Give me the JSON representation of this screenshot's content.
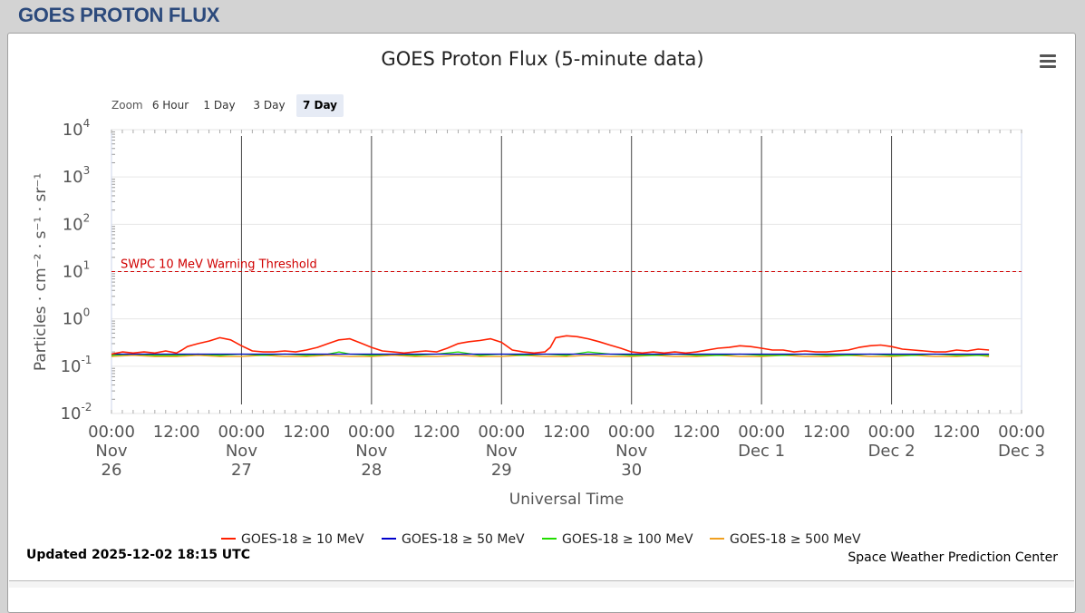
{
  "header": {
    "title": "GOES PROTON FLUX"
  },
  "chart_title": "GOES Proton Flux (5-minute data)",
  "zoom": {
    "label": "Zoom",
    "buttons": [
      "6 Hour",
      "1 Day",
      "3 Day",
      "7 Day"
    ],
    "selected": "7 Day"
  },
  "footer": {
    "updated": "Updated 2025-12-02 18:15 UTC",
    "credit": "Space Weather Prediction Center"
  },
  "chart_data": {
    "type": "line",
    "title": "GOES Proton Flux (5-minute data)",
    "xlabel": "Universal Time",
    "ylabel": "Particles · cm⁻² · s⁻¹ · sr⁻¹",
    "yscale": "log",
    "ylim": [
      0.01,
      10000
    ],
    "y_ticks": [
      {
        "base": "10",
        "exp": "4"
      },
      {
        "base": "10",
        "exp": "3"
      },
      {
        "base": "10",
        "exp": "2"
      },
      {
        "base": "10",
        "exp": "1"
      },
      {
        "base": "10",
        "exp": "0"
      },
      {
        "base": "10",
        "exp": "-1"
      },
      {
        "base": "10",
        "exp": "-2"
      }
    ],
    "xlim_hours": [
      0,
      168
    ],
    "x_ticks": [
      {
        "h": 0,
        "lines": [
          "00:00",
          "Nov",
          "26"
        ]
      },
      {
        "h": 12,
        "lines": [
          "12:00"
        ]
      },
      {
        "h": 24,
        "lines": [
          "00:00",
          "Nov",
          "27"
        ]
      },
      {
        "h": 36,
        "lines": [
          "12:00"
        ]
      },
      {
        "h": 48,
        "lines": [
          "00:00",
          "Nov",
          "28"
        ]
      },
      {
        "h": 60,
        "lines": [
          "12:00"
        ]
      },
      {
        "h": 72,
        "lines": [
          "00:00",
          "Nov",
          "29"
        ]
      },
      {
        "h": 84,
        "lines": [
          "12:00"
        ]
      },
      {
        "h": 96,
        "lines": [
          "00:00",
          "Nov",
          "30"
        ]
      },
      {
        "h": 108,
        "lines": [
          "12:00"
        ]
      },
      {
        "h": 120,
        "lines": [
          "00:00",
          "Dec 1"
        ]
      },
      {
        "h": 132,
        "lines": [
          "12:00"
        ]
      },
      {
        "h": 144,
        "lines": [
          "00:00",
          "Dec 2"
        ]
      },
      {
        "h": 156,
        "lines": [
          "12:00"
        ]
      },
      {
        "h": 168,
        "lines": [
          "00:00",
          "Dec 3"
        ]
      }
    ],
    "day_lines_hours": [
      24,
      48,
      72,
      96,
      120,
      144
    ],
    "threshold": {
      "label": "SWPC 10 MeV Warning Threshold",
      "value": 10,
      "color": "#d00000"
    },
    "series": [
      {
        "name": "GOES-18 ≥ 10 MeV",
        "color": "#ff2000",
        "x": [
          0,
          2,
          4,
          6,
          8,
          10,
          12,
          13,
          14,
          15,
          16,
          18,
          20,
          22,
          24,
          26,
          28,
          30,
          32,
          34,
          36,
          38,
          40,
          42,
          44,
          46,
          48,
          50,
          52,
          54,
          56,
          58,
          60,
          62,
          64,
          66,
          68,
          70,
          72,
          74,
          76,
          78,
          80,
          81,
          82,
          84,
          86,
          88,
          90,
          92,
          94,
          96,
          98,
          100,
          102,
          104,
          106,
          108,
          110,
          112,
          114,
          116,
          118,
          120,
          122,
          124,
          126,
          128,
          130,
          132,
          134,
          136,
          138,
          140,
          142,
          144,
          146,
          148,
          150,
          152,
          154,
          156,
          158,
          160,
          162
        ],
        "values": [
          0.18,
          0.2,
          0.19,
          0.2,
          0.19,
          0.21,
          0.19,
          0.22,
          0.26,
          0.28,
          0.3,
          0.34,
          0.4,
          0.36,
          0.27,
          0.21,
          0.2,
          0.2,
          0.21,
          0.2,
          0.22,
          0.25,
          0.3,
          0.36,
          0.38,
          0.31,
          0.25,
          0.21,
          0.2,
          0.19,
          0.2,
          0.21,
          0.2,
          0.24,
          0.3,
          0.33,
          0.35,
          0.38,
          0.32,
          0.22,
          0.2,
          0.19,
          0.2,
          0.25,
          0.4,
          0.44,
          0.42,
          0.38,
          0.33,
          0.28,
          0.24,
          0.2,
          0.19,
          0.2,
          0.19,
          0.2,
          0.19,
          0.2,
          0.22,
          0.24,
          0.25,
          0.27,
          0.26,
          0.24,
          0.22,
          0.22,
          0.2,
          0.21,
          0.2,
          0.2,
          0.21,
          0.22,
          0.25,
          0.27,
          0.28,
          0.26,
          0.23,
          0.22,
          0.21,
          0.2,
          0.2,
          0.22,
          0.21,
          0.23,
          0.22
        ]
      },
      {
        "name": "GOES-18 ≥ 50 MeV",
        "color": "#0000cc",
        "x": [
          0,
          12,
          24,
          36,
          48,
          60,
          72,
          84,
          96,
          108,
          120,
          132,
          144,
          156,
          162
        ],
        "values": [
          0.18,
          0.18,
          0.18,
          0.18,
          0.18,
          0.18,
          0.18,
          0.18,
          0.18,
          0.18,
          0.18,
          0.18,
          0.18,
          0.18,
          0.18
        ]
      },
      {
        "name": "GOES-18 ≥ 100 MeV",
        "color": "#22dd00",
        "x": [
          0,
          4,
          8,
          12,
          16,
          20,
          24,
          28,
          32,
          36,
          40,
          42,
          44,
          48,
          52,
          56,
          60,
          64,
          68,
          72,
          76,
          80,
          84,
          88,
          92,
          96,
          100,
          104,
          108,
          112,
          116,
          120,
          124,
          128,
          132,
          136,
          140,
          144,
          148,
          152,
          156,
          160,
          162
        ],
        "values": [
          0.17,
          0.18,
          0.17,
          0.17,
          0.18,
          0.17,
          0.18,
          0.17,
          0.18,
          0.17,
          0.18,
          0.2,
          0.18,
          0.17,
          0.18,
          0.17,
          0.18,
          0.2,
          0.17,
          0.18,
          0.17,
          0.18,
          0.17,
          0.2,
          0.18,
          0.17,
          0.17,
          0.18,
          0.17,
          0.17,
          0.18,
          0.17,
          0.17,
          0.18,
          0.17,
          0.17,
          0.18,
          0.17,
          0.17,
          0.18,
          0.17,
          0.17,
          0.17
        ]
      },
      {
        "name": "GOES-18 ≥ 500 MeV",
        "color": "#f0a020",
        "x": [
          0,
          4,
          8,
          12,
          16,
          20,
          24,
          28,
          32,
          36,
          40,
          44,
          48,
          52,
          56,
          60,
          64,
          68,
          72,
          76,
          80,
          84,
          88,
          92,
          96,
          100,
          104,
          108,
          112,
          116,
          120,
          124,
          128,
          132,
          136,
          140,
          144,
          148,
          152,
          156,
          160,
          162
        ],
        "values": [
          0.16,
          0.17,
          0.16,
          0.16,
          0.17,
          0.16,
          0.16,
          0.17,
          0.16,
          0.16,
          0.17,
          0.16,
          0.16,
          0.17,
          0.16,
          0.16,
          0.17,
          0.16,
          0.16,
          0.17,
          0.16,
          0.16,
          0.17,
          0.16,
          0.16,
          0.17,
          0.16,
          0.16,
          0.17,
          0.16,
          0.16,
          0.17,
          0.16,
          0.16,
          0.17,
          0.16,
          0.16,
          0.17,
          0.16,
          0.16,
          0.17,
          0.16
        ]
      }
    ]
  }
}
